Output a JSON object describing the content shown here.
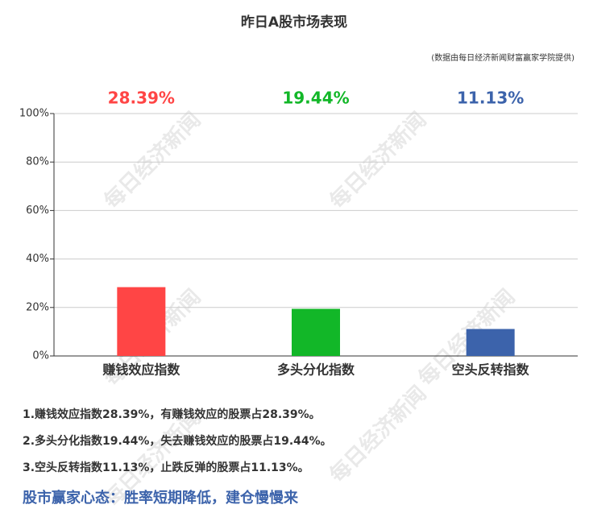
{
  "chart_data": {
    "type": "bar",
    "title": "昨日A股市场表现",
    "subtitle": "(数据由每日经济新闻财富赢家学院提供)",
    "watermark": "每日经济新闻",
    "categories": [
      "赚钱效应指数",
      "多头分化指数",
      "空头反转指数"
    ],
    "values": [
      28.39,
      19.44,
      11.13
    ],
    "value_labels": [
      "28.39%",
      "19.44%",
      "11.13%"
    ],
    "colors": [
      "#ff4545",
      "#12b728",
      "#3c63ab"
    ],
    "ylim": [
      0,
      100
    ],
    "yticks": [
      {
        "value": 0,
        "label": "0%"
      },
      {
        "value": 20,
        "label": "20%"
      },
      {
        "value": 40,
        "label": "40%"
      },
      {
        "value": 60,
        "label": "60%"
      },
      {
        "value": 80,
        "label": "80%"
      },
      {
        "value": 100,
        "label": "100%"
      }
    ],
    "grid": true,
    "notes": [
      "1.赚钱效应指数28.39%，有赚钱效应的股票占28.39%。",
      "2.多头分化指数19.44%，失去赚钱效应的股票占19.44%。",
      "3.空头反转指数11.13%，止跌反弹的股票占11.13%。"
    ],
    "conclusion": "股市赢家心态：胜率短期降低，建仓慢慢来"
  }
}
